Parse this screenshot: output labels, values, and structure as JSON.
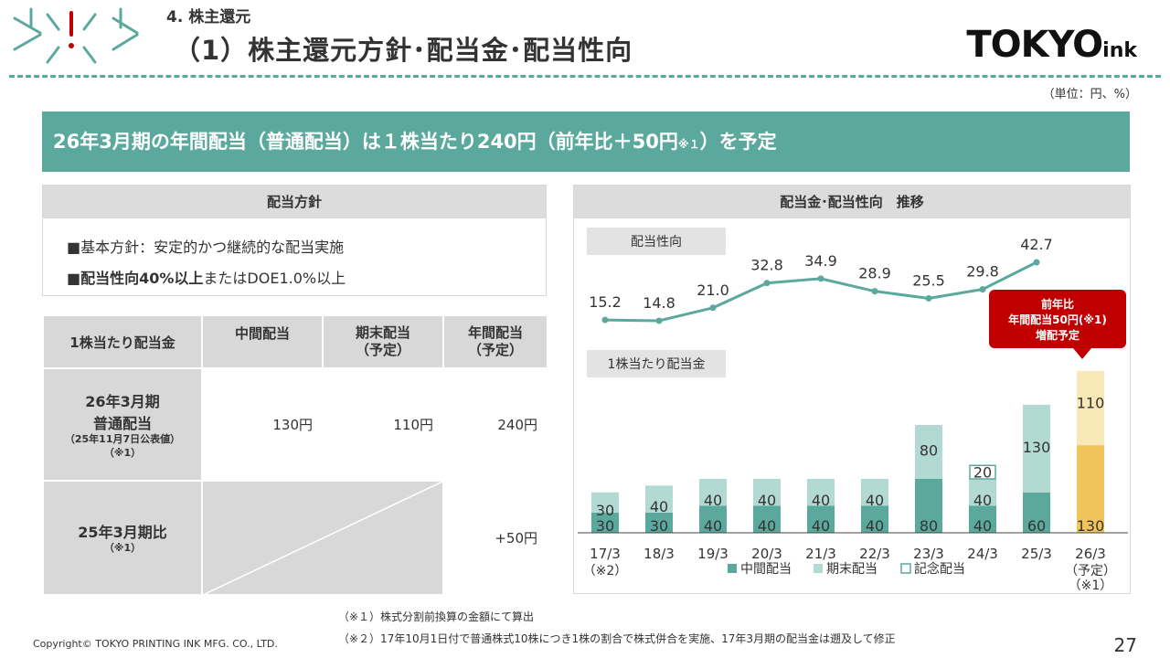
{
  "header": {
    "section_label": "4. 株主還元",
    "page_title": "（1）株主還元方針･配当金･配当性向",
    "logo_text_main": "TOKYO",
    "logo_text_sub": "ink",
    "unit_note": "（単位：円、%）"
  },
  "banner": {
    "text_main": "26年3月期の年間配当（普通配当）は１株当たり240円（前年比＋50円",
    "text_sup": "※１",
    "text_end": "）を予定"
  },
  "policy": {
    "heading": "配当方針",
    "item1": "■基本方針：安定的かつ継続的な配当実施",
    "item2_bold": "■配当性向40%以上",
    "item2_rest": "またはDOE1.0%以上"
  },
  "dividend_table": {
    "col_headers": [
      "1株当たり配当金",
      "中間配当",
      "期末配当\n（予定）",
      "年間配当\n（予定）"
    ],
    "row1": {
      "title": "26年3月期",
      "title2": "普通配当",
      "sub": "（25年11月7日公表値）",
      "note": "（※1）",
      "interim": "130円",
      "year_end": "110円",
      "annual": "240円"
    },
    "row2": {
      "title": "25年3月期比",
      "note": "（※1）",
      "annual": "+50円"
    }
  },
  "chart_data": {
    "type": "bar",
    "title": "配当金･配当性向　推移",
    "line_label": "配当性向",
    "bar_label": "1株当たり配当金",
    "categories": [
      "17/3",
      "18/3",
      "19/3",
      "20/3",
      "21/3",
      "22/3",
      "23/3",
      "24/3",
      "25/3",
      "26/3"
    ],
    "category_notes": [
      "（※2）",
      "",
      "",
      "",
      "",
      "",
      "",
      "",
      "",
      "（予定）"
    ],
    "category_notes2": [
      "",
      "",
      "",
      "",
      "",
      "",
      "",
      "",
      "",
      "（※1）"
    ],
    "series": [
      {
        "name": "中間配当",
        "values": [
          30,
          30,
          40,
          40,
          40,
          40,
          80,
          40,
          60,
          130
        ],
        "color": "#5ba89d"
      },
      {
        "name": "期末配当",
        "values": [
          30,
          40,
          40,
          40,
          40,
          40,
          80,
          40,
          130,
          110
        ],
        "color": "#b3d9d3"
      },
      {
        "name": "記念配当",
        "values": [
          0,
          0,
          0,
          0,
          0,
          0,
          0,
          20,
          0,
          0
        ],
        "color": "#ffffff"
      }
    ],
    "forecast_colors": {
      "interim": "#f0c45a",
      "year_end": "#f8e8b8"
    },
    "payout_ratio": {
      "name": "配当性向",
      "values": [
        15.2,
        14.8,
        21.0,
        32.8,
        34.9,
        28.9,
        25.5,
        29.8,
        42.7
      ],
      "labels": [
        "15.2",
        "14.8",
        "21.0",
        "32.8",
        "34.9",
        "28.9",
        "25.5",
        "29.8",
        "42.7"
      ],
      "color": "#5ba89d"
    },
    "callout": [
      "前年比",
      "年間配当50円(※1)",
      "増配予定"
    ],
    "callout_color": "#c00000",
    "legend": [
      "中間配当",
      "期末配当",
      "記念配当"
    ]
  },
  "footnotes": {
    "note1": "（※１）株式分割前換算の金額にて算出",
    "note2": "（※２）17年10月1日付で普通株式10株につき1株の割合で株式併合を実施、17年3月期の配当金は遡及して修正"
  },
  "footer": {
    "copyright": "Copyright© TOKYO PRINTING INK MFG. CO., LTD.",
    "page_number": "27"
  },
  "colors": {
    "accent": "#5ba89d",
    "callout": "#c00000",
    "forecast": "#f0c45a"
  }
}
